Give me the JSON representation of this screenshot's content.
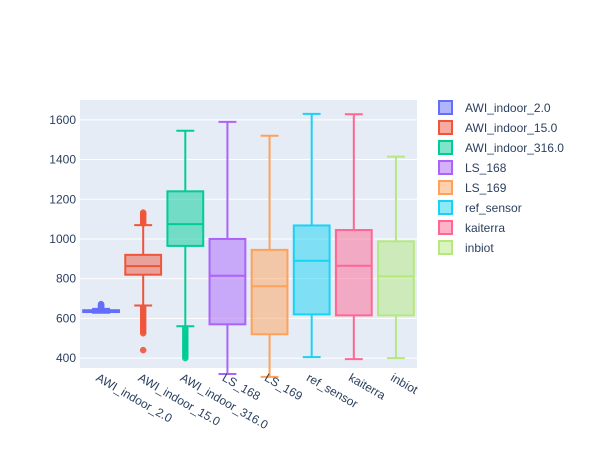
{
  "chart_data": {
    "type": "box",
    "title": "",
    "xlabel": "",
    "ylabel": "",
    "ylim": [
      350,
      1700
    ],
    "yticks": [
      400,
      600,
      800,
      1000,
      1200,
      1400,
      1600
    ],
    "grid": true,
    "legend_position": "right",
    "categories": [
      "AWI_indoor_2.0",
      "AWI_indoor_15.0",
      "AWI_indoor_316.0",
      "LS_168",
      "LS_169",
      "ref_sensor",
      "kaiterra",
      "inbiot"
    ],
    "series": [
      {
        "name": "AWI_indoor_2.0",
        "color": "#636efa",
        "min": 628,
        "q1": 632,
        "median": 636,
        "q3": 641,
        "max": 648,
        "outliers": [
          651,
          654,
          657,
          660,
          663,
          666,
          669,
          672
        ]
      },
      {
        "name": "AWI_indoor_15.0",
        "color": "#EF553B",
        "min": 665,
        "q1": 820,
        "median": 863,
        "q3": 920,
        "max": 1070,
        "outliers": [
          440,
          525,
          535,
          545,
          555,
          565,
          575,
          585,
          595,
          605,
          615,
          625,
          635,
          645,
          655,
          1078,
          1086,
          1094,
          1102,
          1110,
          1118,
          1126,
          1133
        ]
      },
      {
        "name": "AWI_indoor_316.0",
        "color": "#00cc96",
        "min": 560,
        "q1": 965,
        "median": 1075,
        "q3": 1240,
        "max": 1545,
        "outliers": [
          400,
          410,
          420,
          430,
          440,
          450,
          460,
          470,
          480,
          490,
          500,
          510,
          520,
          530,
          540,
          550
        ]
      },
      {
        "name": "LS_168",
        "color": "#ab63fa",
        "min": 320,
        "q1": 570,
        "median": 815,
        "q3": 1000,
        "max": 1590,
        "outliers": []
      },
      {
        "name": "LS_169",
        "color": "#FFA15A",
        "min": 305,
        "q1": 520,
        "median": 762,
        "q3": 945,
        "max": 1520,
        "outliers": []
      },
      {
        "name": "ref_sensor",
        "color": "#19d3f3",
        "min": 405,
        "q1": 620,
        "median": 890,
        "q3": 1068,
        "max": 1630,
        "outliers": []
      },
      {
        "name": "kaiterra",
        "color": "#FF6692",
        "min": 395,
        "q1": 615,
        "median": 865,
        "q3": 1045,
        "max": 1628,
        "outliers": []
      },
      {
        "name": "inbiot",
        "color": "#B6E880",
        "min": 400,
        "q1": 615,
        "median": 812,
        "q3": 988,
        "max": 1415,
        "outliers": []
      }
    ]
  }
}
